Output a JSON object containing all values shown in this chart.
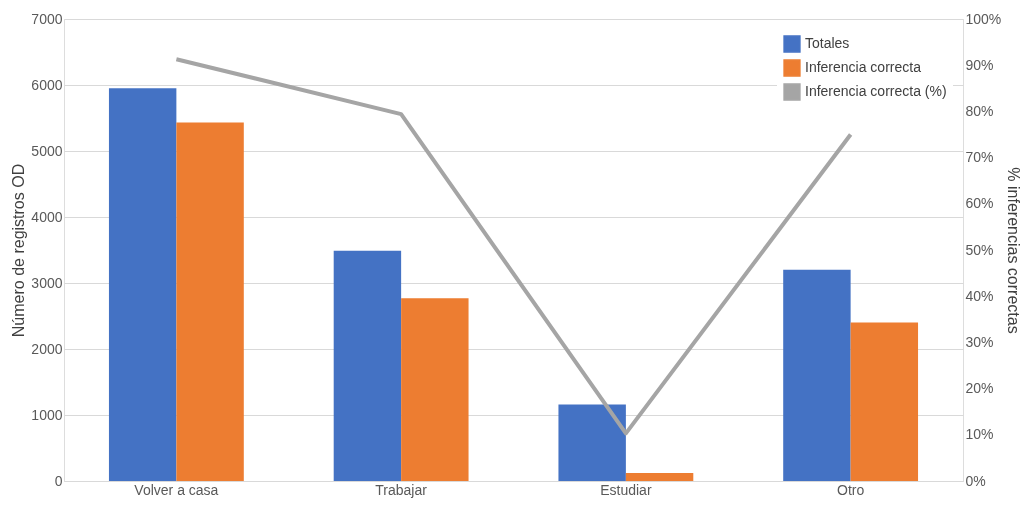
{
  "chart_data": {
    "type": "bar",
    "categories": [
      "Volver a casa",
      "Trabajar",
      "Estudiar",
      "Otro"
    ],
    "ylabel": "Número de registros OD",
    "y2label": "% inferencias correctas",
    "ylim": [
      0,
      7000
    ],
    "yticks": [
      0,
      1000,
      2000,
      3000,
      4000,
      5000,
      6000,
      7000
    ],
    "y2lim": [
      0,
      100
    ],
    "y2ticks": [
      {
        "value": 0,
        "label": "0%"
      },
      {
        "value": 10,
        "label": "10%"
      },
      {
        "value": 20,
        "label": "20%"
      },
      {
        "value": 30,
        "label": "30%"
      },
      {
        "value": 40,
        "label": "40%"
      },
      {
        "value": 50,
        "label": "50%"
      },
      {
        "value": 60,
        "label": "60%"
      },
      {
        "value": 70,
        "label": "70%"
      },
      {
        "value": 80,
        "label": "80%"
      },
      {
        "value": 90,
        "label": "90%"
      },
      {
        "value": 100,
        "label": "100%"
      }
    ],
    "series": [
      {
        "name": "Totales",
        "color": "#4472c4",
        "values": [
          5950,
          3490,
          1160,
          3200
        ]
      },
      {
        "name": "Inferencia correcta",
        "color": "#ed7d31",
        "values": [
          5430,
          2770,
          120,
          2400
        ]
      },
      {
        "name": "Inferencia correcta (%)",
        "color": "#a5a5a5",
        "type": "line",
        "axis": "y2",
        "values": [
          91.3,
          79.4,
          10.3,
          75.0
        ]
      }
    ],
    "grid": "y",
    "legend": "top right",
    "marker": "none",
    "line_style": "solid"
  }
}
